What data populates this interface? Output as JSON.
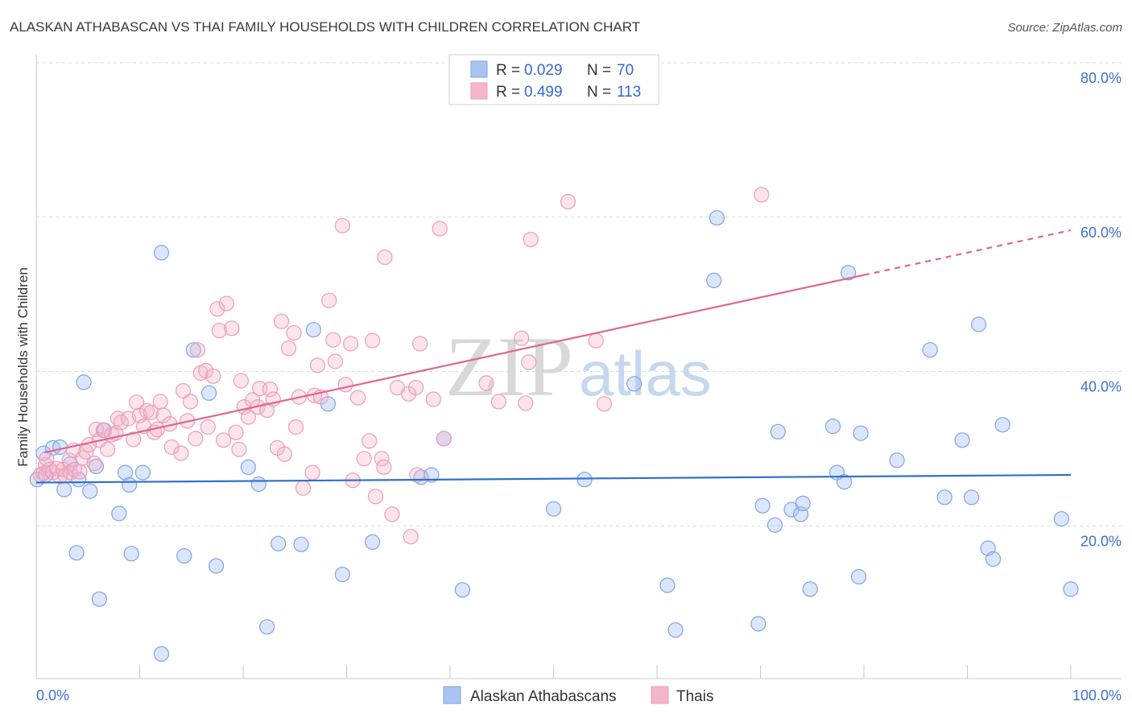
{
  "header": {
    "source": "Source: ZipAtlas.com"
  },
  "watermark": {
    "brand_primary": "ZIP",
    "brand_secondary": "atlas"
  },
  "colors": {
    "tick_label": "#3f6fd0",
    "legend_value": "#3568d4",
    "grid": "#dadada",
    "title": "#3a3a3a"
  },
  "chart_data": {
    "type": "scatter",
    "title": "ALASKAN ATHABASCAN VS THAI FAMILY HOUSEHOLDS WITH CHILDREN CORRELATION CHART",
    "ylabel": "Family Households with Children",
    "xlim": [
      0,
      100
    ],
    "ylim": [
      0,
      80
    ],
    "grid": true,
    "x_ticks": [
      {
        "value": 0,
        "label": "0.0%"
      },
      {
        "value": 100,
        "label": "100.0%"
      }
    ],
    "y_ticks": [
      {
        "value": 20,
        "label": "20.0%"
      },
      {
        "value": 40,
        "label": "40.0%"
      },
      {
        "value": 60,
        "label": "60.0%"
      },
      {
        "value": 80,
        "label": "80.0%"
      }
    ],
    "legend": {
      "r_label": "R =",
      "n_label": "N ="
    },
    "series": [
      {
        "name": "Alaskan Athabascans",
        "r": "0.029",
        "n": "70",
        "color": "#a9c4f2",
        "stroke": "#7ea4e4",
        "line_color": "#2f6fd0",
        "trend": [
          {
            "x": [
              0,
              100
            ],
            "y": [
              25.6,
              26.6
            ],
            "dashed": false
          }
        ],
        "points": [
          [
            0.1,
            26.0
          ],
          [
            0.7,
            29.4
          ],
          [
            0.9,
            26.6
          ],
          [
            1.6,
            30.1
          ],
          [
            2.3,
            30.2
          ],
          [
            2.7,
            24.7
          ],
          [
            3.3,
            28.0
          ],
          [
            3.9,
            16.5
          ],
          [
            4.1,
            26.0
          ],
          [
            4.6,
            38.6
          ],
          [
            5.2,
            24.5
          ],
          [
            5.8,
            27.7
          ],
          [
            6.1,
            10.5
          ],
          [
            6.5,
            32.4
          ],
          [
            8.0,
            21.6
          ],
          [
            8.6,
            26.9
          ],
          [
            9.0,
            25.3
          ],
          [
            9.2,
            16.4
          ],
          [
            10.3,
            26.9
          ],
          [
            12.1,
            55.4
          ],
          [
            12.1,
            3.4
          ],
          [
            14.3,
            16.1
          ],
          [
            15.2,
            42.8
          ],
          [
            16.7,
            37.2
          ],
          [
            17.4,
            14.8
          ],
          [
            20.5,
            27.6
          ],
          [
            21.5,
            25.4
          ],
          [
            22.3,
            6.9
          ],
          [
            23.4,
            17.7
          ],
          [
            25.6,
            17.6
          ],
          [
            26.8,
            45.4
          ],
          [
            28.2,
            35.8
          ],
          [
            29.6,
            13.7
          ],
          [
            32.5,
            17.9
          ],
          [
            37.2,
            26.3
          ],
          [
            38.2,
            26.6
          ],
          [
            39.4,
            31.3
          ],
          [
            41.2,
            11.7
          ],
          [
            50.0,
            22.2
          ],
          [
            53.0,
            26.0
          ],
          [
            57.8,
            38.4
          ],
          [
            61.0,
            12.3
          ],
          [
            61.8,
            6.5
          ],
          [
            65.5,
            51.8
          ],
          [
            65.8,
            59.9
          ],
          [
            69.8,
            7.3
          ],
          [
            70.2,
            22.6
          ],
          [
            71.4,
            20.1
          ],
          [
            71.7,
            32.2
          ],
          [
            73.0,
            22.1
          ],
          [
            73.9,
            21.5
          ],
          [
            74.1,
            22.9
          ],
          [
            74.8,
            11.8
          ],
          [
            77.0,
            32.9
          ],
          [
            77.4,
            26.9
          ],
          [
            78.1,
            25.7
          ],
          [
            78.5,
            52.8
          ],
          [
            79.5,
            13.4
          ],
          [
            79.7,
            32.0
          ],
          [
            83.2,
            28.5
          ],
          [
            86.4,
            42.8
          ],
          [
            87.8,
            23.7
          ],
          [
            89.5,
            31.1
          ],
          [
            90.4,
            23.7
          ],
          [
            91.1,
            46.1
          ],
          [
            92.0,
            17.1
          ],
          [
            92.5,
            15.7
          ],
          [
            93.4,
            33.1
          ],
          [
            99.1,
            20.9
          ],
          [
            100.0,
            11.8
          ]
        ]
      },
      {
        "name": "Thais",
        "r": "0.499",
        "n": "113",
        "color": "#f5b5ca",
        "stroke": "#eb9db8",
        "line_color": "#e0668f",
        "trend": [
          {
            "x": [
              0.8,
              80
            ],
            "y": [
              29.5,
              52.5
            ],
            "dashed": false
          },
          {
            "x": [
              80,
              100
            ],
            "y": [
              52.5,
              58.3
            ],
            "dashed": true
          }
        ],
        "points": [
          [
            0.4,
            26.6
          ],
          [
            0.7,
            26.8
          ],
          [
            0.9,
            27.9
          ],
          [
            1.0,
            28.7
          ],
          [
            1.3,
            27.3
          ],
          [
            1.6,
            26.9
          ],
          [
            2.0,
            27.4
          ],
          [
            2.3,
            26.4
          ],
          [
            2.6,
            27.3
          ],
          [
            2.8,
            26.5
          ],
          [
            3.2,
            28.5
          ],
          [
            3.3,
            26.9
          ],
          [
            3.6,
            29.8
          ],
          [
            3.7,
            27.3
          ],
          [
            4.2,
            27.0
          ],
          [
            4.5,
            28.8
          ],
          [
            4.8,
            29.6
          ],
          [
            5.1,
            30.5
          ],
          [
            5.6,
            28.1
          ],
          [
            5.8,
            32.5
          ],
          [
            6.1,
            31.1
          ],
          [
            6.6,
            32.4
          ],
          [
            6.9,
            29.9
          ],
          [
            7.3,
            31.8
          ],
          [
            7.7,
            32.0
          ],
          [
            7.9,
            33.9
          ],
          [
            8.2,
            33.4
          ],
          [
            8.9,
            33.9
          ],
          [
            9.4,
            31.2
          ],
          [
            9.7,
            36.0
          ],
          [
            10.0,
            34.3
          ],
          [
            10.4,
            32.9
          ],
          [
            10.7,
            34.9
          ],
          [
            11.1,
            34.7
          ],
          [
            11.4,
            32.1
          ],
          [
            11.7,
            32.5
          ],
          [
            12.0,
            36.1
          ],
          [
            12.3,
            34.3
          ],
          [
            12.9,
            33.2
          ],
          [
            13.1,
            30.2
          ],
          [
            14.0,
            29.4
          ],
          [
            14.2,
            37.5
          ],
          [
            14.6,
            33.6
          ],
          [
            14.9,
            36.1
          ],
          [
            15.4,
            31.3
          ],
          [
            15.6,
            42.8
          ],
          [
            15.9,
            39.8
          ],
          [
            16.4,
            40.1
          ],
          [
            16.6,
            32.8
          ],
          [
            17.1,
            39.4
          ],
          [
            17.5,
            48.1
          ],
          [
            17.7,
            45.3
          ],
          [
            18.1,
            31.1
          ],
          [
            18.4,
            48.8
          ],
          [
            18.9,
            45.6
          ],
          [
            19.3,
            32.1
          ],
          [
            19.6,
            29.9
          ],
          [
            19.8,
            38.8
          ],
          [
            20.1,
            35.4
          ],
          [
            20.5,
            34.1
          ],
          [
            20.9,
            36.3
          ],
          [
            21.4,
            35.4
          ],
          [
            21.6,
            37.8
          ],
          [
            22.3,
            35.0
          ],
          [
            22.6,
            37.7
          ],
          [
            22.9,
            36.4
          ],
          [
            23.3,
            30.1
          ],
          [
            23.7,
            46.5
          ],
          [
            24.0,
            29.3
          ],
          [
            24.4,
            43.0
          ],
          [
            24.9,
            45.0
          ],
          [
            25.1,
            32.8
          ],
          [
            25.4,
            36.7
          ],
          [
            25.8,
            24.9
          ],
          [
            26.7,
            26.9
          ],
          [
            26.9,
            36.9
          ],
          [
            27.2,
            40.8
          ],
          [
            27.5,
            36.7
          ],
          [
            28.3,
            49.2
          ],
          [
            28.7,
            44.1
          ],
          [
            28.9,
            41.3
          ],
          [
            29.6,
            58.9
          ],
          [
            29.9,
            38.3
          ],
          [
            30.4,
            43.6
          ],
          [
            30.6,
            25.9
          ],
          [
            31.1,
            36.6
          ],
          [
            31.7,
            28.7
          ],
          [
            32.2,
            31.0
          ],
          [
            32.5,
            44.0
          ],
          [
            32.8,
            23.8
          ],
          [
            33.4,
            28.7
          ],
          [
            33.6,
            27.6
          ],
          [
            33.7,
            54.8
          ],
          [
            34.4,
            21.5
          ],
          [
            34.9,
            37.9
          ],
          [
            36.0,
            37.1
          ],
          [
            36.2,
            18.6
          ],
          [
            36.7,
            37.9
          ],
          [
            36.8,
            26.6
          ],
          [
            37.1,
            43.6
          ],
          [
            38.4,
            36.4
          ],
          [
            39.0,
            58.5
          ],
          [
            39.4,
            31.3
          ],
          [
            43.5,
            38.5
          ],
          [
            44.7,
            36.1
          ],
          [
            46.9,
            44.3
          ],
          [
            47.3,
            35.9
          ],
          [
            47.6,
            41.2
          ],
          [
            47.8,
            57.1
          ],
          [
            51.4,
            62.0
          ],
          [
            54.1,
            44.0
          ],
          [
            54.9,
            35.8
          ],
          [
            70.1,
            62.9
          ]
        ]
      }
    ]
  }
}
